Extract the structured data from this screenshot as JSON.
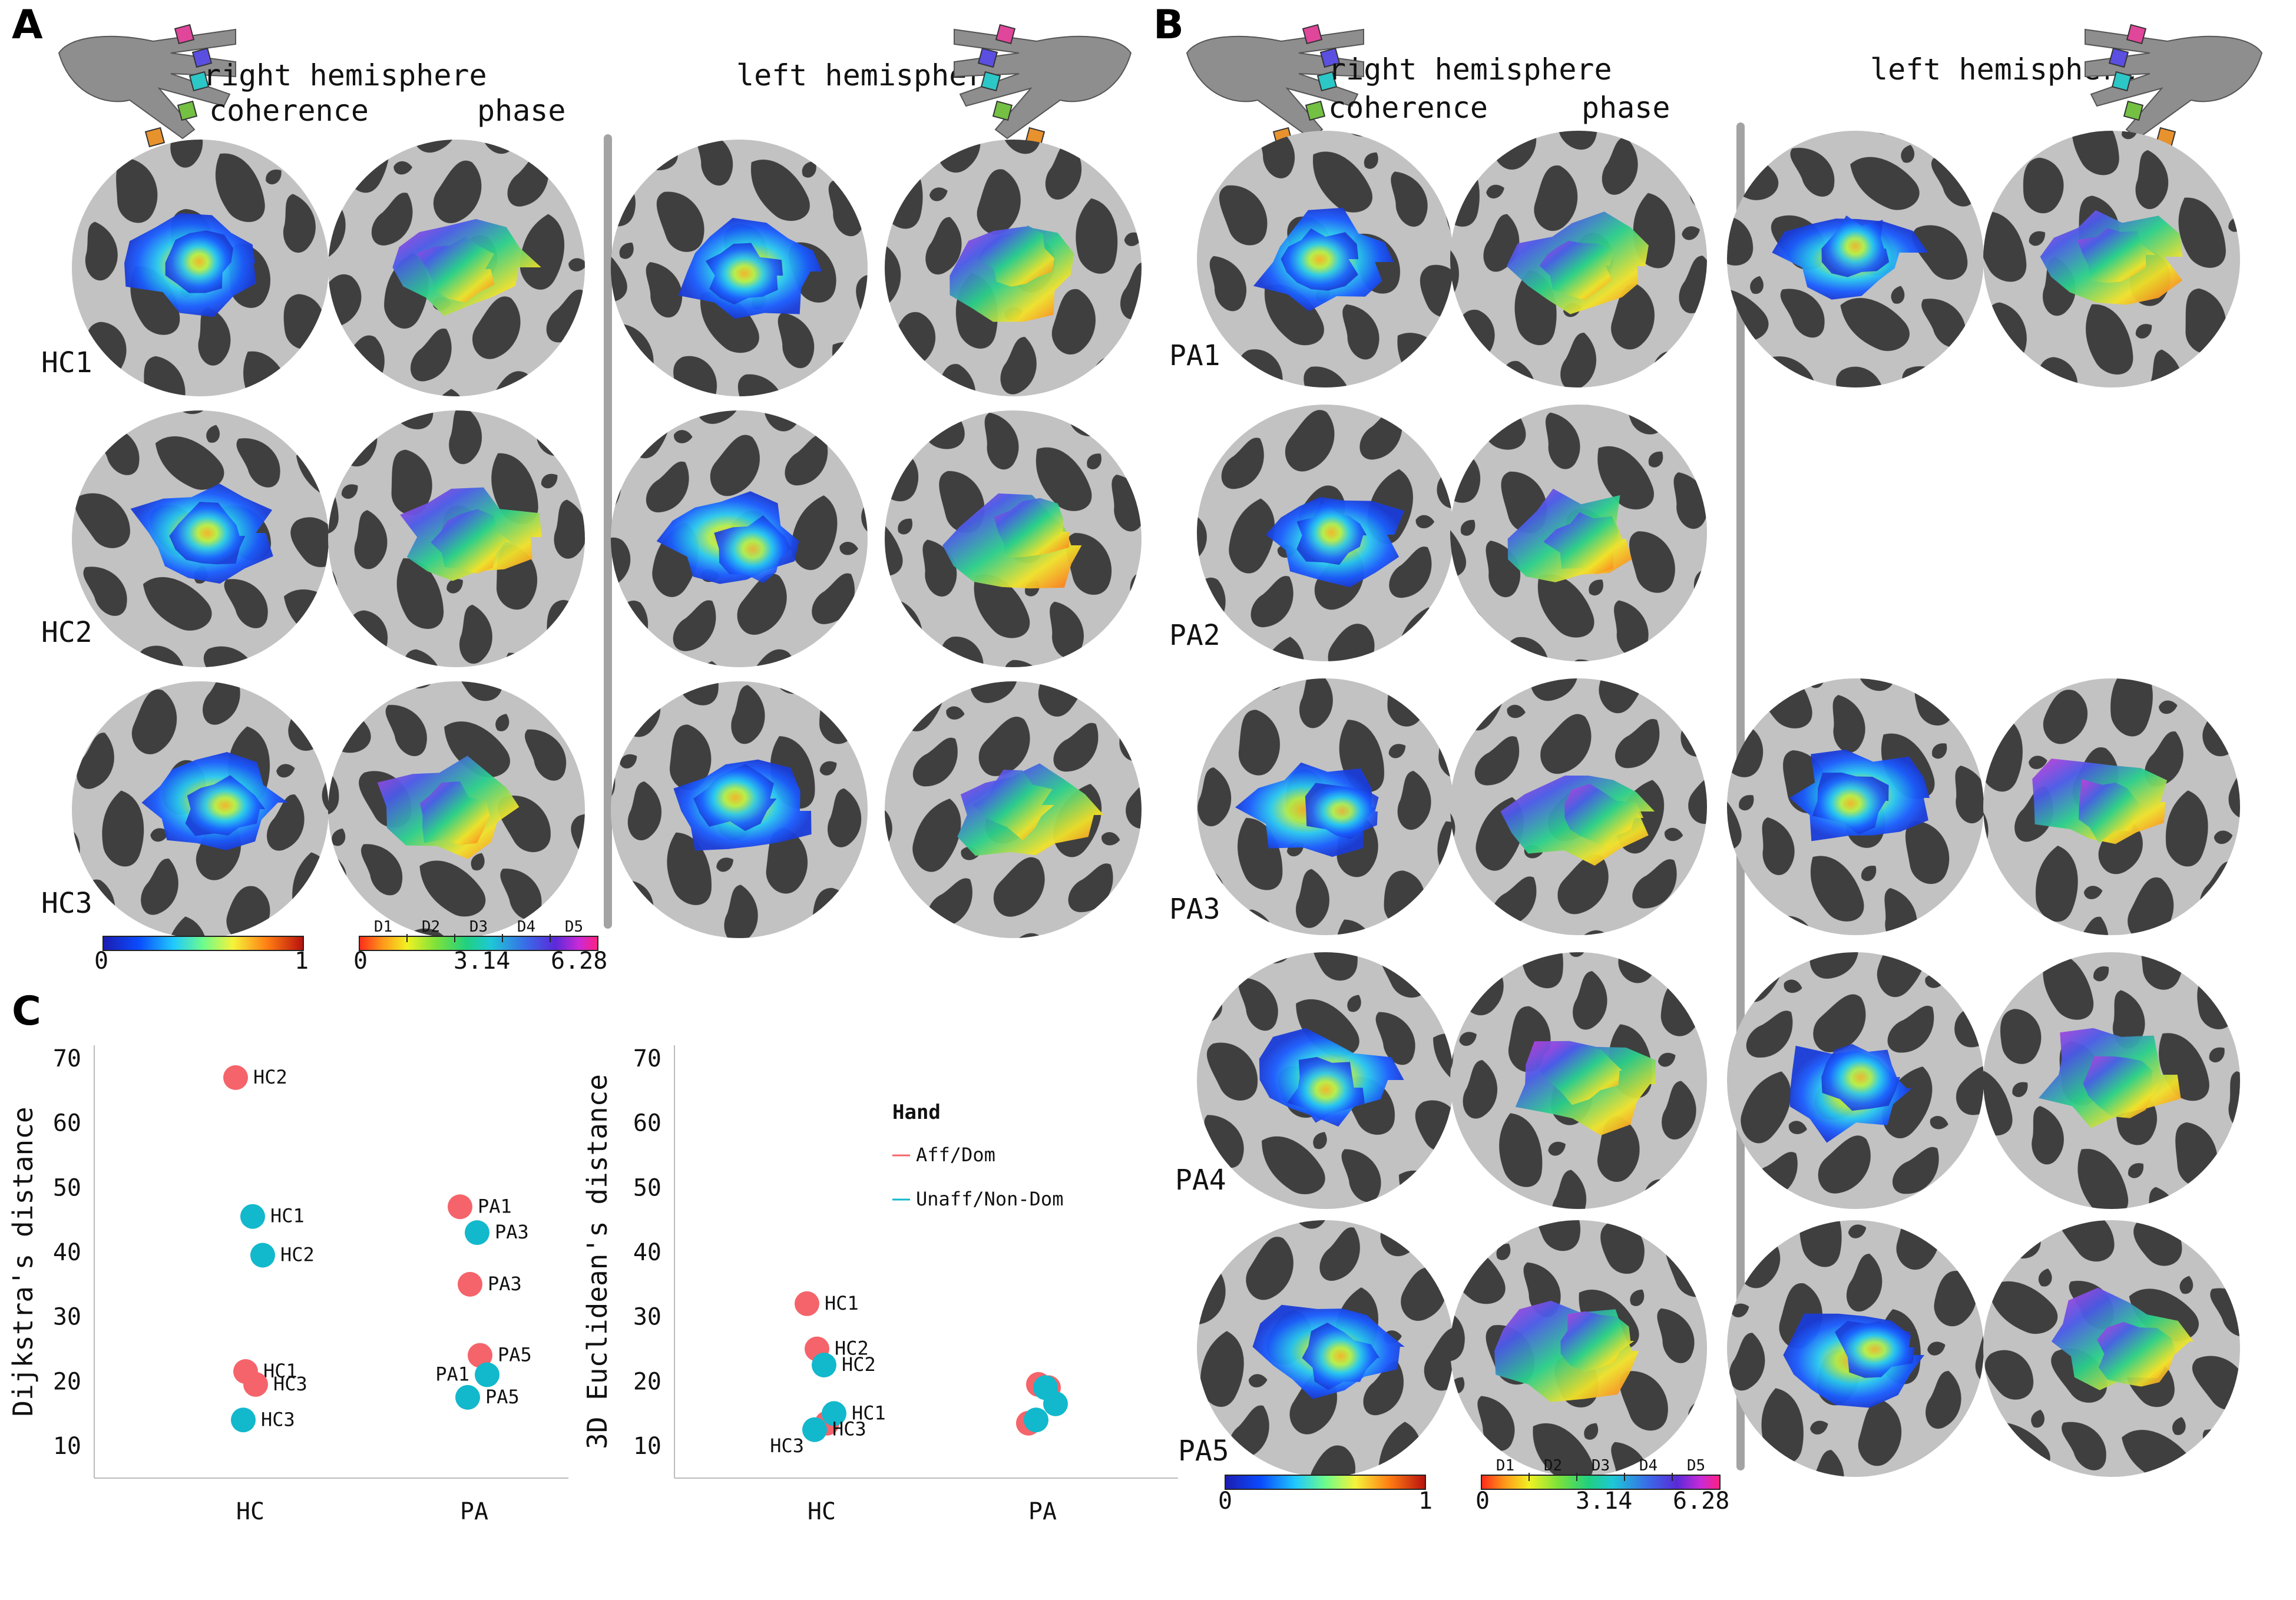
{
  "panels": {
    "A": {
      "letter": "A",
      "right_header": "right hemisphere",
      "left_header": "left hemisphere",
      "col_coherence": "coherence",
      "col_phase": "phase",
      "rows": [
        "HC1",
        "HC2",
        "HC3"
      ]
    },
    "B": {
      "letter": "B",
      "right_header": "right hemisphere",
      "left_header": "left hemisphere",
      "col_coherence": "coherence",
      "col_phase": "phase",
      "rows": [
        "PA1",
        "PA2",
        "PA3",
        "PA4",
        "PA5"
      ],
      "left_missing_rows": [
        "PA2"
      ]
    },
    "C": {
      "letter": "C"
    }
  },
  "colorbars": {
    "coherence": {
      "min_label": "0",
      "max_label": "1"
    },
    "phase": {
      "digit_labels": [
        "D1",
        "D2",
        "D3",
        "D4",
        "D5"
      ],
      "min_label": "0",
      "mid_label": "3.14",
      "max_label": "6.28"
    }
  },
  "hand_finger_colors": [
    "#e8922e",
    "#74c043",
    "#2cc7c7",
    "#5a4fe0",
    "#e0469a"
  ],
  "colors": {
    "aff_dom": "#f4646a",
    "unaff_nondom": "#12b8cc",
    "divider": "#a3a3a3",
    "brain_light": "#c2c2c2",
    "brain_dark": "#3f3f3f"
  },
  "chart_data": [
    {
      "type": "scatter",
      "xlabel": "",
      "ylabel": "Dijkstra's distance",
      "categories": [
        "HC",
        "PA"
      ],
      "ylim": [
        5,
        72
      ],
      "yticks": [
        10,
        20,
        30,
        40,
        50,
        60,
        70
      ],
      "series": [
        {
          "name": "Aff/Dom",
          "points": [
            {
              "category": "HC",
              "y": 67,
              "label": "HC2"
            },
            {
              "category": "HC",
              "y": 21.5,
              "label": "HC1"
            },
            {
              "category": "HC",
              "y": 19.5,
              "label": "HC3"
            },
            {
              "category": "PA",
              "y": 47,
              "label": "PA1"
            },
            {
              "category": "PA",
              "y": 35,
              "label": "PA3"
            },
            {
              "category": "PA",
              "y": 24,
              "label": "PA5"
            }
          ]
        },
        {
          "name": "Unaff/Non-Dom",
          "points": [
            {
              "category": "HC",
              "y": 45.5,
              "label": "HC1"
            },
            {
              "category": "HC",
              "y": 39.5,
              "label": "HC2"
            },
            {
              "category": "HC",
              "y": 14,
              "label": "HC3"
            },
            {
              "category": "PA",
              "y": 43,
              "label": "PA3"
            },
            {
              "category": "PA",
              "y": 21,
              "label": "PA1"
            },
            {
              "category": "PA",
              "y": 17.5,
              "label": "PA5"
            }
          ]
        }
      ]
    },
    {
      "type": "scatter",
      "xlabel": "",
      "ylabel": "3D Euclidean's distance",
      "categories": [
        "HC",
        "PA"
      ],
      "ylim": [
        5,
        72
      ],
      "yticks": [
        10,
        20,
        30,
        40,
        50,
        60,
        70
      ],
      "legend": {
        "title": "Hand",
        "position": "top-right",
        "entries": [
          "Aff/Dom",
          "Unaff/Non-Dom"
        ]
      },
      "series": [
        {
          "name": "Aff/Dom",
          "points": [
            {
              "category": "HC",
              "y": 32,
              "label": "HC1"
            },
            {
              "category": "HC",
              "y": 25,
              "label": "HC2"
            },
            {
              "category": "HC",
              "y": 13.5,
              "label": ""
            },
            {
              "category": "PA",
              "y": 13.5,
              "label": ""
            },
            {
              "category": "PA",
              "y": 19.5,
              "label": ""
            },
            {
              "category": "PA",
              "y": 19,
              "label": ""
            }
          ]
        },
        {
          "name": "Unaff/Non-Dom",
          "points": [
            {
              "category": "HC",
              "y": 22.5,
              "label": "HC2"
            },
            {
              "category": "HC",
              "y": 15,
              "label": "HC1"
            },
            {
              "category": "HC",
              "y": 12.5,
              "label": "HC3"
            },
            {
              "category": "PA",
              "y": 19,
              "label": ""
            },
            {
              "category": "PA",
              "y": 16.5,
              "label": ""
            },
            {
              "category": "PA",
              "y": 14,
              "label": ""
            }
          ]
        }
      ],
      "extra_labels": [
        "HC3"
      ]
    }
  ]
}
